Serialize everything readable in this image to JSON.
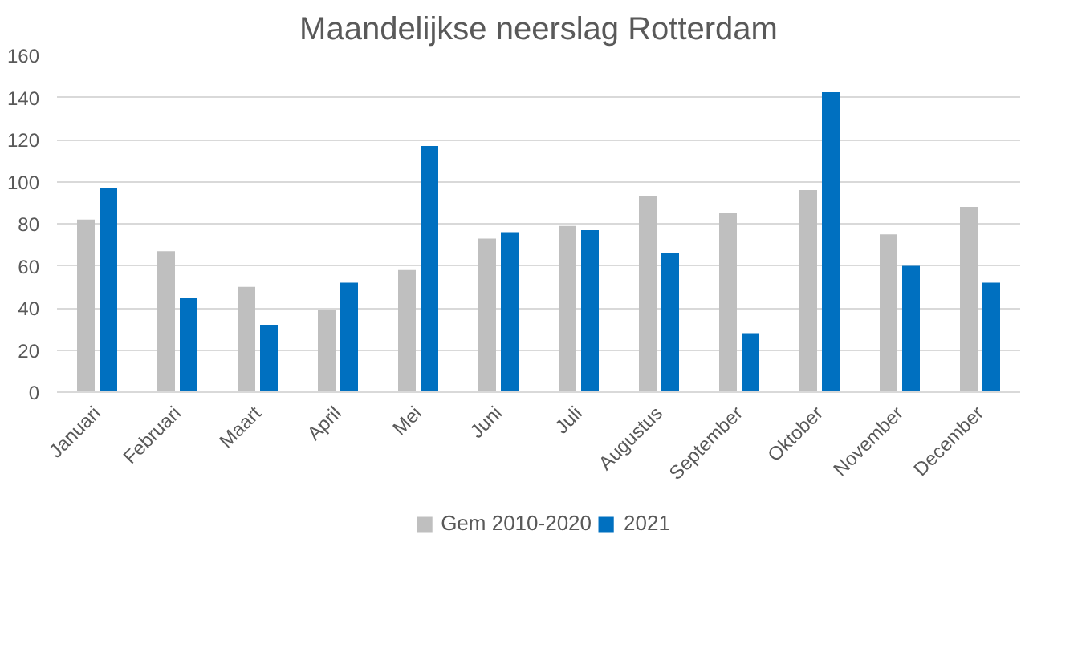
{
  "chart_data": {
    "type": "bar",
    "title": "Maandelijkse neerslag Rotterdam",
    "categories": [
      "Januari",
      "Februari",
      "Maart",
      "April",
      "Mei",
      "Juni",
      "Juli",
      "Augustus",
      "September",
      "Oktober",
      "November",
      "December"
    ],
    "series": [
      {
        "name": "Gem 2010-2020",
        "color": "#bfbfbf",
        "values": [
          82,
          67,
          50,
          39,
          58,
          73,
          79,
          93,
          85,
          96,
          75,
          88
        ]
      },
      {
        "name": "2021",
        "color": "#0070c0",
        "values": [
          97,
          45,
          32,
          52,
          117,
          76,
          77,
          66,
          28,
          142.5,
          60,
          52
        ]
      }
    ],
    "ylim": [
      0,
      160
    ],
    "yticks": [
      0,
      20,
      40,
      60,
      80,
      100,
      120,
      140,
      160
    ],
    "grid": "y",
    "legend": "bottom"
  }
}
